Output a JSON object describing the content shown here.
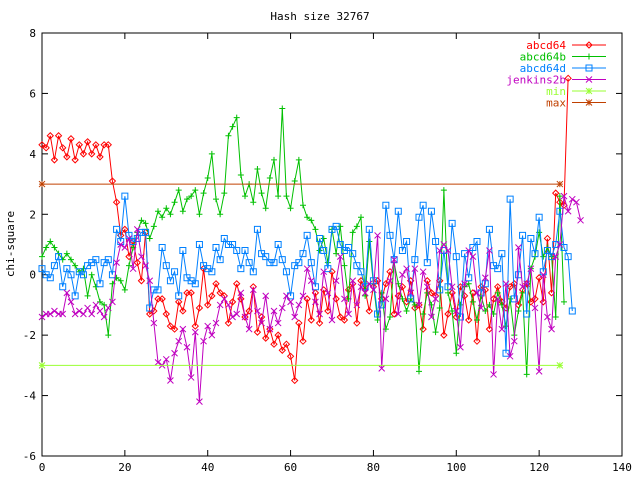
{
  "chart_data": {
    "type": "line",
    "title": "Hash size 32767",
    "xlabel": "",
    "ylabel": "chi-square",
    "xlim": [
      0,
      140
    ],
    "ylim": [
      -6,
      8
    ],
    "x_ticks": [
      "0",
      "20",
      "40",
      "60",
      "80",
      "100",
      "120",
      "140"
    ],
    "y_ticks": [
      "-6",
      "-4",
      "-2",
      "0",
      "2",
      "4",
      "6",
      "8"
    ],
    "legend_position": "top-right",
    "grid": false,
    "series": [
      {
        "name": "abcd64",
        "color": "#ff0000",
        "marker": "diamond",
        "x_start": 0,
        "values": [
          4.3,
          4.2,
          4.6,
          3.8,
          4.6,
          4.2,
          3.9,
          4.5,
          3.8,
          4.3,
          4.0,
          4.4,
          4.0,
          4.3,
          3.9,
          4.3,
          4.3,
          3.1,
          2.4,
          1.3,
          1.5,
          0.6,
          1.1,
          0.4,
          -0.2,
          1.4,
          -1.3,
          -1.2,
          -0.8,
          -0.8,
          -1.3,
          -1.7,
          -1.8,
          -0.9,
          -1.2,
          -0.6,
          -0.6,
          -1.7,
          -1.1,
          0.2,
          -1.0,
          -0.7,
          -0.3,
          -0.6,
          -0.7,
          -1.6,
          -0.9,
          -0.3,
          -0.8,
          -1.4,
          -1.2,
          -0.4,
          -1.9,
          -1.4,
          -2.1,
          -1.8,
          -2.3,
          -2.0,
          -2.5,
          -2.3,
          -2.7,
          -3.5,
          -1.6,
          -2.2,
          -0.8,
          -1.5,
          -0.6,
          -1.6,
          -0.5,
          -1.2,
          0.1,
          -0.8,
          -1.4,
          -1.5,
          -0.5,
          -0.3,
          -1.6,
          -0.2,
          -0.5,
          -1.2,
          -0.4,
          -0.2,
          -0.8,
          -0.3,
          0.1,
          -1.3,
          -0.7,
          -0.4,
          -0.9,
          -0.2,
          -1.1,
          -1.0,
          -1.8,
          -0.2,
          -0.6,
          -0.7,
          -0.2,
          -2.0,
          -1.3,
          -0.6,
          -1.4,
          -0.4,
          -0.7,
          -1.5,
          -0.6,
          -2.2,
          -0.4,
          -0.5,
          -1.8,
          -0.8,
          -0.4,
          -0.9,
          -1.1,
          -0.4,
          -0.3,
          -1.0,
          -0.5,
          -0.3,
          -0.9,
          -0.8,
          -0.1,
          -0.9,
          1.2,
          -0.6,
          2.7,
          2.4,
          2.3,
          6.5
        ]
      },
      {
        "name": "abcd64b",
        "color": "#00c000",
        "marker": "plus",
        "x_start": 0,
        "values": [
          0.6,
          0.9,
          1.1,
          0.9,
          0.7,
          0.5,
          0.7,
          0.5,
          0.3,
          0.1,
          0.2,
          -0.7,
          0.0,
          -0.4,
          -0.9,
          -1.0,
          -2.0,
          -0.3,
          -0.1,
          -0.2,
          -0.5,
          0.3,
          0.9,
          1.4,
          1.8,
          1.7,
          1.2,
          1.6,
          2.1,
          1.9,
          2.2,
          2.0,
          2.4,
          2.8,
          2.1,
          2.5,
          2.6,
          2.8,
          2.0,
          2.7,
          3.2,
          4.0,
          2.5,
          2.0,
          2.7,
          4.6,
          4.9,
          5.2,
          3.3,
          2.6,
          3.0,
          2.4,
          3.5,
          2.7,
          2.2,
          3.2,
          3.8,
          2.6,
          5.5,
          2.6,
          2.2,
          3.1,
          3.8,
          2.3,
          1.9,
          1.8,
          1.5,
          0.8,
          1.2,
          0.4,
          1.5,
          0.7,
          1.6,
          0.3,
          -0.8,
          1.4,
          1.6,
          1.9,
          -0.7,
          1.1,
          -0.3,
          -1.5,
          -0.6,
          -1.8,
          -1.4,
          0.4,
          -0.3,
          -0.8,
          -1.2,
          -0.8,
          -1.0,
          -3.2,
          -1.3,
          -0.6,
          -1.0,
          -1.9,
          -1.1,
          2.8,
          -0.6,
          -1.2,
          -2.6,
          -1.0,
          -0.4,
          -0.3,
          -0.9,
          -1.5,
          -0.7,
          -1.2,
          -1.0,
          -1.3,
          -0.6,
          -1.0,
          -1.7,
          -0.8,
          -2.0,
          -1.2,
          -0.6,
          -3.3,
          0.2,
          0.6,
          1.4,
          0.6,
          0.9,
          0.6,
          -1.4,
          2.6,
          -0.9
        ]
      },
      {
        "name": "abcd64d",
        "color": "#0080ff",
        "marker": "square",
        "x_start": 0,
        "values": [
          0.2,
          0.0,
          -0.1,
          0.3,
          0.6,
          -0.4,
          0.2,
          0.0,
          -0.7,
          0.1,
          0.0,
          0.3,
          0.4,
          0.5,
          -0.3,
          0.4,
          0.5,
          0.0,
          1.5,
          1.1,
          2.6,
          1.3,
          1.1,
          1.2,
          1.4,
          1.4,
          -1.1,
          -0.5,
          -0.5,
          0.9,
          0.3,
          -0.2,
          0.1,
          -0.7,
          0.8,
          -0.1,
          -0.2,
          -0.3,
          1.0,
          0.3,
          0.2,
          0.1,
          0.9,
          0.5,
          1.2,
          1.0,
          1.0,
          0.8,
          0.2,
          0.8,
          0.4,
          0.1,
          1.5,
          0.7,
          0.6,
          0.4,
          0.4,
          1.0,
          0.5,
          0.1,
          -0.7,
          0.3,
          0.4,
          0.7,
          1.3,
          0.4,
          -0.4,
          1.2,
          0.8,
          0.2,
          1.5,
          1.6,
          1.0,
          0.8,
          0.9,
          0.7,
          0.3,
          0.1,
          -0.4,
          1.5,
          -0.2,
          -1.3,
          -1.0,
          2.3,
          1.3,
          0.5,
          2.1,
          0.8,
          1.1,
          -0.8,
          0.5,
          1.9,
          2.3,
          0.4,
          2.1,
          1.1,
          -0.5,
          0.8,
          -0.4,
          1.7,
          0.6,
          -1.4,
          0.7,
          -0.1,
          0.9,
          1.1,
          -0.6,
          -0.3,
          1.5,
          0.3,
          0.2,
          0.7,
          -2.6,
          2.5,
          -0.8,
          0.0,
          1.3,
          -1.3,
          1.2,
          0.7,
          1.9,
          0.1,
          0.8,
          0.6,
          1.0,
          2.1,
          0.9,
          0.6,
          -1.2
        ]
      },
      {
        "name": "jenkins2b",
        "color": "#c000c0",
        "marker": "cross",
        "x_start": 0,
        "values": [
          -1.4,
          -1.3,
          -1.3,
          -1.2,
          -1.3,
          -1.3,
          -0.6,
          -0.9,
          -1.3,
          -1.2,
          -1.3,
          -1.1,
          -1.3,
          -1.0,
          -1.2,
          -1.4,
          -1.1,
          -0.9,
          0.4,
          1.0,
          0.9,
          1.2,
          0.2,
          1.5,
          0.6,
          0.3,
          -0.2,
          -1.6,
          -2.9,
          -3.0,
          -2.8,
          -3.5,
          -2.6,
          -2.2,
          -1.8,
          -2.4,
          -3.4,
          -1.9,
          -4.2,
          -2.2,
          -1.7,
          -2.0,
          -1.6,
          -1.0,
          -0.8,
          -1.0,
          -1.4,
          -1.3,
          -0.6,
          -1.4,
          -1.8,
          -0.5,
          -1.2,
          -1.6,
          -0.7,
          -1.8,
          -1.2,
          -1.6,
          -1.1,
          -0.7,
          -0.9,
          -1.4,
          -1.0,
          -0.7,
          0.2,
          -0.2,
          -0.9,
          -1.3,
          0.1,
          -0.6,
          -1.5,
          -0.2,
          0.6,
          -0.8,
          -1.3,
          -0.2,
          -1.0,
          -0.4,
          -0.6,
          -0.3,
          -0.5,
          1.3,
          -3.1,
          -0.8,
          -0.2,
          0.5,
          -1.3,
          0.0,
          0.2,
          -0.6,
          0.2,
          -1.0,
          0.1,
          -0.4,
          -1.4,
          -0.8,
          0.8,
          1.0,
          0.8,
          -0.4,
          -1.2,
          -2.4,
          -0.3,
          0.8,
          0.6,
          -0.6,
          -1.1,
          -0.1,
          0.8,
          -3.3,
          -0.8,
          -1.8,
          -0.3,
          -2.7,
          -2.2,
          0.9,
          -0.4,
          -0.3,
          0.2,
          -1.1,
          -3.2,
          0.0,
          -1.4,
          -1.8,
          0.6,
          1.0,
          2.6,
          2.1,
          2.5,
          2.4,
          1.8
        ]
      },
      {
        "name": "min",
        "color": "#99ff33",
        "marker": "star",
        "x": [
          0,
          125
        ],
        "values": [
          -3.0,
          -3.0
        ]
      },
      {
        "name": "max",
        "color": "#c04000",
        "marker": "star",
        "x": [
          0,
          125
        ],
        "values": [
          3.0,
          3.0
        ]
      }
    ]
  }
}
